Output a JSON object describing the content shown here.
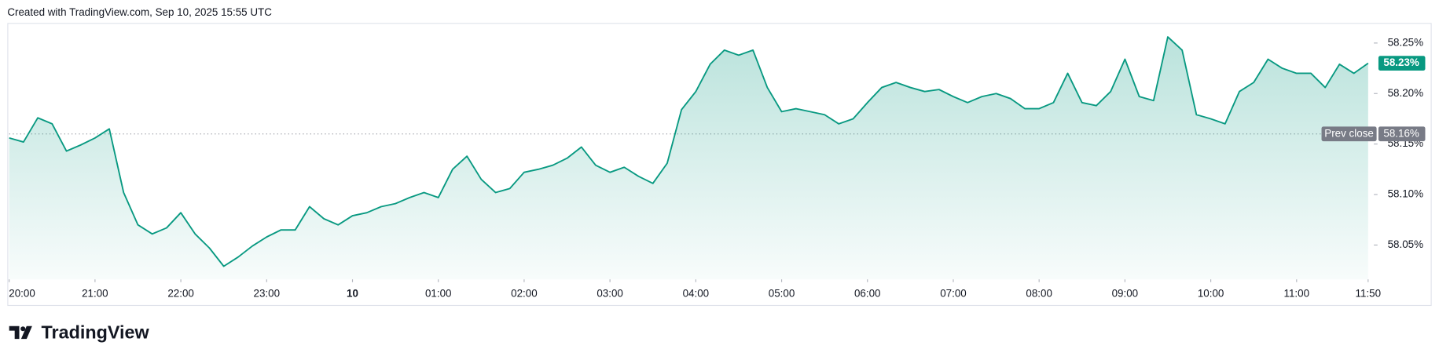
{
  "header": "Created with TradingView.com, Sep 10, 2025 15:55 UTC",
  "brand": "TradingView",
  "chart_data": {
    "type": "area",
    "color": "#089981",
    "x": [
      0,
      0.1667,
      0.3333,
      0.5,
      0.6667,
      0.8333,
      1,
      1.1667,
      1.3333,
      1.5,
      1.6667,
      1.8333,
      2,
      2.1667,
      2.3333,
      2.5,
      2.6667,
      2.8333,
      3,
      3.1667,
      3.3333,
      3.5,
      3.6667,
      3.8333,
      4,
      4.1667,
      4.3333,
      4.5,
      4.6667,
      4.8333,
      5,
      5.1667,
      5.3333,
      5.5,
      5.6667,
      5.8333,
      6,
      6.1667,
      6.3333,
      6.5,
      6.6667,
      6.8333,
      7,
      7.1667,
      7.3333,
      7.5,
      7.6667,
      7.8333,
      8,
      8.1667,
      8.3333,
      8.5,
      8.6667,
      8.8333,
      9,
      9.1667,
      9.3333,
      9.5,
      9.6667,
      9.8333,
      10,
      10.1667,
      10.3333,
      10.5,
      10.6667,
      10.8333,
      11,
      11.1667,
      11.3333,
      11.5,
      11.6667,
      11.8333,
      12,
      12.1667,
      12.3333,
      12.5,
      12.6667,
      12.8333,
      13,
      13.1667,
      13.3333,
      13.5,
      13.6667,
      13.8333,
      14,
      14.1667,
      14.3333,
      14.5,
      14.6667,
      14.8333,
      15,
      15.1667,
      15.3333,
      15.5,
      15.6667,
      15.8333
    ],
    "values": [
      58.156,
      58.152,
      58.176,
      58.17,
      58.143,
      58.149,
      58.156,
      58.165,
      58.102,
      58.07,
      58.061,
      58.067,
      58.082,
      58.061,
      58.047,
      58.029,
      58.038,
      58.049,
      58.058,
      58.065,
      58.065,
      58.088,
      58.076,
      58.07,
      58.079,
      58.082,
      58.088,
      58.091,
      58.097,
      58.102,
      58.097,
      58.125,
      58.138,
      58.115,
      58.102,
      58.106,
      58.122,
      58.125,
      58.129,
      58.136,
      58.147,
      58.129,
      58.122,
      58.127,
      58.118,
      58.111,
      58.131,
      58.184,
      58.202,
      58.229,
      58.243,
      58.238,
      58.243,
      58.206,
      58.182,
      58.185,
      58.182,
      58.179,
      58.17,
      58.175,
      58.191,
      58.206,
      58.211,
      58.206,
      58.202,
      58.204,
      58.197,
      58.191,
      58.197,
      58.2,
      58.195,
      58.185,
      58.185,
      58.191,
      58.22,
      58.191,
      58.188,
      58.202,
      58.234,
      58.197,
      58.193,
      58.256,
      58.243,
      58.179,
      58.175,
      58.17,
      58.202,
      58.211,
      58.234,
      58.225,
      58.22,
      58.22,
      58.206,
      58.229,
      58.22,
      58.23
    ],
    "xlim": [
      0,
      15.9
    ],
    "ylim": [
      58.016,
      58.269
    ],
    "xticks": [
      {
        "value": 0,
        "label": "20:00"
      },
      {
        "value": 1,
        "label": "21:00"
      },
      {
        "value": 2,
        "label": "22:00"
      },
      {
        "value": 3,
        "label": "23:00"
      },
      {
        "value": 4,
        "label": "10"
      },
      {
        "value": 5,
        "label": "01:00"
      },
      {
        "value": 6,
        "label": "02:00"
      },
      {
        "value": 7,
        "label": "03:00"
      },
      {
        "value": 8,
        "label": "04:00"
      },
      {
        "value": 9,
        "label": "05:00"
      },
      {
        "value": 10,
        "label": "06:00"
      },
      {
        "value": 11,
        "label": "07:00"
      },
      {
        "value": 12,
        "label": "08:00"
      },
      {
        "value": 13,
        "label": "09:00"
      },
      {
        "value": 14,
        "label": "10:00"
      },
      {
        "value": 15,
        "label": "11:00"
      },
      {
        "value": 15.8333,
        "label": "11:50"
      }
    ],
    "yticks": [
      {
        "value": 58.05,
        "label": "58.05%"
      },
      {
        "value": 58.1,
        "label": "58.10%"
      },
      {
        "value": 58.15,
        "label": "58.15%"
      },
      {
        "value": 58.2,
        "label": "58.20%"
      },
      {
        "value": 58.25,
        "label": "58.25%"
      }
    ],
    "prev_close": {
      "label": "Prev close",
      "value": 58.16,
      "value_label": "58.16%"
    },
    "last_price": {
      "value": 58.23,
      "label": "58.23%"
    }
  }
}
